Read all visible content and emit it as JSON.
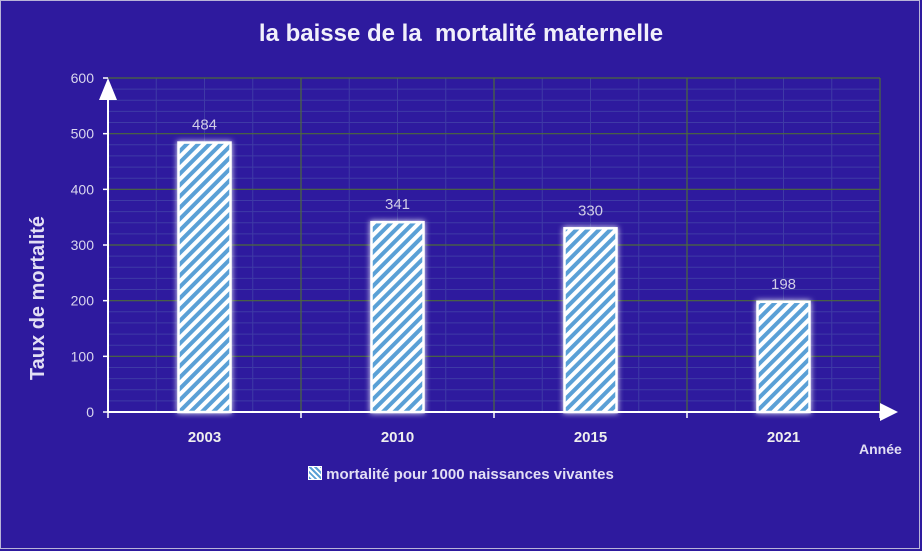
{
  "chart_data": {
    "type": "bar",
    "title": "la baisse de la  mortalité maternelle",
    "xlabel": "Année",
    "ylabel": "Taux de mortalité",
    "categories": [
      "2003",
      "2010",
      "2015",
      "2021"
    ],
    "series": [
      {
        "name": "mortalité pour 1000 naissances vivantes",
        "values": [
          484,
          341,
          330,
          198
        ]
      }
    ],
    "ylim": [
      0,
      600
    ],
    "yticks": [
      "0",
      "100",
      "200",
      "300",
      "400",
      "500",
      "600"
    ],
    "data_labels": [
      "484",
      "341",
      "330",
      "198"
    ],
    "grid": true,
    "legend_position": "bottom",
    "colors": {
      "background": "#2e1a9e",
      "bar_stripe": "#5aa0d6",
      "bar_fill": "#ffffff",
      "axis": "#ffffff",
      "grid_major": "#4d6a3a",
      "grid_minor": "#3f3aa6"
    }
  }
}
